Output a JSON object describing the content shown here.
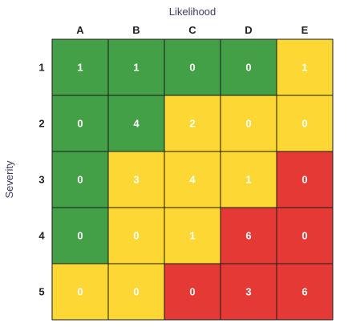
{
  "chart_data": {
    "type": "heatmap",
    "xlabel": "Likelihood",
    "ylabel": "Severity",
    "x_categories": [
      "A",
      "B",
      "C",
      "D",
      "E"
    ],
    "y_categories": [
      "1",
      "2",
      "3",
      "4",
      "5"
    ],
    "values": [
      [
        1,
        1,
        0,
        0,
        1
      ],
      [
        0,
        4,
        2,
        0,
        0
      ],
      [
        0,
        3,
        4,
        1,
        0
      ],
      [
        0,
        0,
        1,
        6,
        0
      ],
      [
        0,
        0,
        0,
        3,
        6
      ]
    ],
    "cell_colors": [
      [
        "green",
        "green",
        "green",
        "green",
        "yellow"
      ],
      [
        "green",
        "green",
        "yellow",
        "yellow",
        "yellow"
      ],
      [
        "green",
        "yellow",
        "yellow",
        "yellow",
        "red"
      ],
      [
        "green",
        "yellow",
        "yellow",
        "red",
        "red"
      ],
      [
        "yellow",
        "yellow",
        "red",
        "red",
        "red"
      ]
    ],
    "palette": {
      "green": "#43a047",
      "yellow": "#fdd835",
      "red": "#e53935"
    },
    "grid": true,
    "legend": "none"
  }
}
